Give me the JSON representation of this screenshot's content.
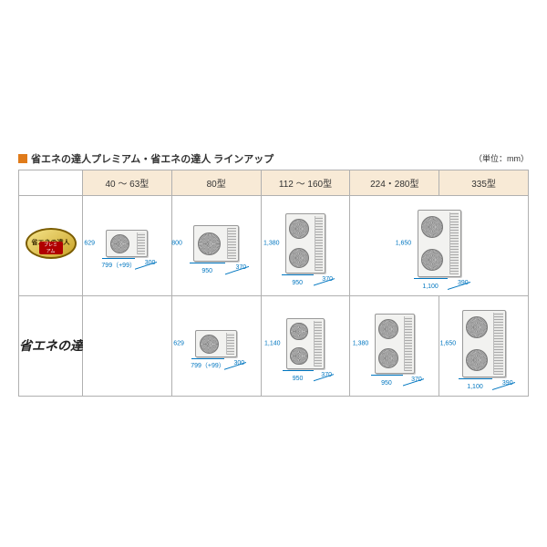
{
  "title": "省エネの達人プレミアム・省エネの達人 ラインアップ",
  "unit_note": "（単位：mm）",
  "accent_color": "#e07b1a",
  "header_bg": "#f8ead6",
  "dim_color": "#0076c0",
  "columns": [
    {
      "label": "40 〜 63型"
    },
    {
      "label": "80型"
    },
    {
      "label": "112 〜 160型"
    },
    {
      "label": "224・280型"
    },
    {
      "label": "335型"
    }
  ],
  "rows": [
    {
      "brand": {
        "type": "badge",
        "top": "省エネの達人",
        "sub": "プレミアム",
        "bg": "linear-gradient(145deg,#f5e48a,#c9a227)"
      },
      "cells": [
        {
          "h": "629",
          "w": "799（+99）",
          "d": "300",
          "fans": 1,
          "bw": 46,
          "bh": 30
        },
        {
          "h": "800",
          "w": "950",
          "d": "370",
          "fans": 1,
          "bw": 50,
          "bh": 40
        },
        {
          "h": "1,380",
          "w": "950",
          "d": "370",
          "fans": 2,
          "bw": 44,
          "bh": 66
        },
        {
          "h": "1,650",
          "w": "1,100",
          "d": "390",
          "fans": 2,
          "bw": 48,
          "bh": 74
        },
        null
      ]
    },
    {
      "brand": {
        "type": "script",
        "text": "省エネの達人"
      },
      "cells": [
        null,
        {
          "h": "629",
          "w": "799（+99）",
          "d": "300",
          "fans": 1,
          "bw": 46,
          "bh": 30
        },
        {
          "h": "1,140",
          "w": "950",
          "d": "370",
          "fans": 2,
          "bw": 42,
          "bh": 56
        },
        {
          "h": "1,380",
          "w": "950",
          "d": "370",
          "fans": 2,
          "bw": 44,
          "bh": 66
        },
        {
          "h": "1,650",
          "w": "1,100",
          "d": "390",
          "fans": 2,
          "bw": 48,
          "bh": 74
        }
      ]
    }
  ]
}
